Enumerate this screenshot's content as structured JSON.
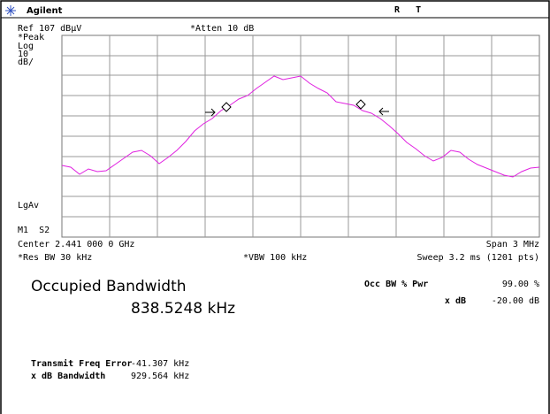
{
  "header": {
    "brand": "Agilent",
    "status": "R   T"
  },
  "settings": {
    "ref": "Ref 107 dBµV",
    "atten": "*Atten 10 dB",
    "detector": "*Peak",
    "scale_type": "Log",
    "scale_value": "10",
    "scale_unit": "dB/",
    "averaging": "LgAv",
    "markers": "M1  S2"
  },
  "footer": {
    "center": "Center 2.441 000 0 GHz",
    "span": "Span 3 MHz",
    "rbw": "*Res BW 30 kHz",
    "vbw": "*VBW 100 kHz",
    "sweep": "Sweep 3.2 ms (1201 pts)"
  },
  "result": {
    "title": "Occupied Bandwidth",
    "value": "838.5248 kHz",
    "pwr_label": "Occ BW % Pwr",
    "pwr_value": "99.00 %",
    "xdb_label": "x dB",
    "xdb_value": "-20.00 dB"
  },
  "details": [
    {
      "label": "Transmit Freq Error",
      "value": "-41.307 kHz"
    },
    {
      "label": "x dB Bandwidth",
      "value": "929.564 kHz"
    }
  ]
}
